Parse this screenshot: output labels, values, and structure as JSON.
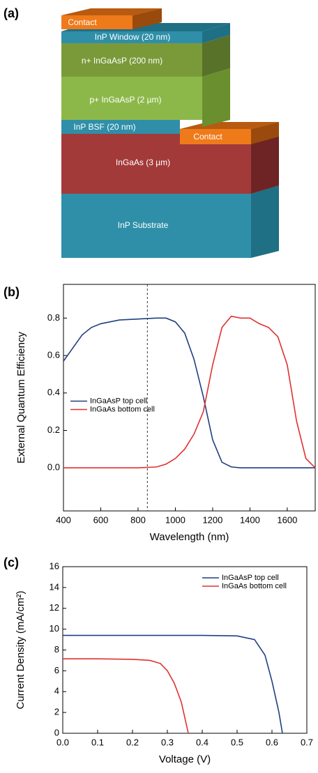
{
  "diagram": {
    "panel_label": "(a)",
    "layers": {
      "contact_top": "Contact",
      "window": "InP Window (20 nm)",
      "n_ingaasp": "n+ InGaAsP  (200 nm)",
      "p_ingaasp": "p+ InGaAsP (2 µm)",
      "bsf": "InP BSF (20 nm)",
      "contact_bottom": "Contact",
      "ingaas": "InGaAs (3 µm)",
      "substrate": "InP Substrate"
    }
  },
  "chart_data": [
    {
      "type": "line",
      "panel_label": "(b)",
      "x_label": "Wavelength (nm)",
      "y_label": "External Quantum Efficiency",
      "x": [
        400,
        450,
        500,
        550,
        600,
        700,
        800,
        900,
        950,
        1000,
        1050,
        1100,
        1150,
        1200,
        1250,
        1300,
        1350,
        1400,
        1450,
        1500,
        1550,
        1600,
        1650,
        1700,
        1750
      ],
      "series": [
        {
          "name": "InGaAsP top cell",
          "color": "#1f3f7f",
          "values": [
            0.57,
            0.64,
            0.71,
            0.75,
            0.77,
            0.79,
            0.795,
            0.8,
            0.8,
            0.78,
            0.72,
            0.58,
            0.38,
            0.15,
            0.03,
            0.005,
            0,
            0,
            0,
            0,
            0,
            0,
            0,
            0,
            0
          ]
        },
        {
          "name": "InGaAs bottom cell",
          "color": "#e03030",
          "values": [
            0,
            0,
            0,
            0,
            0,
            0,
            0,
            0.005,
            0.02,
            0.05,
            0.1,
            0.18,
            0.3,
            0.55,
            0.75,
            0.81,
            0.8,
            0.8,
            0.77,
            0.75,
            0.7,
            0.55,
            0.25,
            0.05,
            0
          ]
        }
      ],
      "xlim": [
        400,
        1750
      ],
      "ylim": [
        -0.23,
        0.98
      ],
      "xticks": [
        400,
        600,
        800,
        1000,
        1200,
        1400,
        1600
      ],
      "yticks": [
        {
          "value": 0,
          "label": "0.0"
        },
        0.2,
        0.4,
        0.6,
        0.8
      ],
      "reference_line_x": 850,
      "legend": "center left"
    },
    {
      "type": "line",
      "panel_label": "(c)",
      "x_label": "Voltage (V)",
      "y_label": "Current Density (mA/cm²)",
      "series": [
        {
          "name": "InGaAsP top cell",
          "color": "#1f3f7f",
          "x": [
            0,
            0.1,
            0.2,
            0.3,
            0.4,
            0.5,
            0.55,
            0.58,
            0.6,
            0.62,
            0.63
          ],
          "values": [
            9.4,
            9.4,
            9.4,
            9.4,
            9.4,
            9.35,
            9.0,
            7.5,
            5,
            2,
            0
          ]
        },
        {
          "name": "InGaAs bottom cell",
          "color": "#e03030",
          "x": [
            0,
            0.1,
            0.2,
            0.25,
            0.28,
            0.3,
            0.32,
            0.34,
            0.35,
            0.36
          ],
          "values": [
            7.15,
            7.15,
            7.1,
            7.0,
            6.7,
            6.0,
            4.8,
            3.0,
            1.5,
            0
          ]
        }
      ],
      "xlim": [
        0,
        0.7
      ],
      "ylim": [
        0,
        16
      ],
      "xticks": [
        {
          "value": 0,
          "label": "0.0"
        },
        0.1,
        0.2,
        0.3,
        0.4,
        0.5,
        0.6,
        0.7
      ],
      "yticks": [
        0,
        2,
        4,
        6,
        8,
        10,
        12,
        14,
        16
      ],
      "legend": "upper right"
    }
  ]
}
